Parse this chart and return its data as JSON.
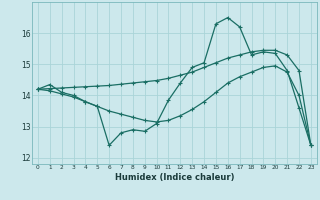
{
  "xlabel": "Humidex (Indice chaleur)",
  "bg_color": "#cce8ec",
  "grid_color": "#aad4d8",
  "line_color": "#1a6e64",
  "xlim": [
    -0.5,
    23.5
  ],
  "ylim": [
    11.8,
    17.0
  ],
  "yticks": [
    12,
    13,
    14,
    15,
    16
  ],
  "xticks": [
    0,
    1,
    2,
    3,
    4,
    5,
    6,
    7,
    8,
    9,
    10,
    11,
    12,
    13,
    14,
    15,
    16,
    17,
    18,
    19,
    20,
    21,
    22,
    23
  ],
  "line1_x": [
    0,
    1,
    2,
    3,
    4,
    5,
    6,
    7,
    8,
    9,
    10,
    11,
    12,
    13,
    14,
    15,
    16,
    17,
    18,
    19,
    20,
    21,
    22,
    23
  ],
  "line1_y": [
    14.2,
    14.35,
    14.1,
    14.0,
    13.8,
    13.65,
    12.4,
    12.8,
    12.9,
    12.85,
    13.1,
    13.85,
    14.4,
    14.9,
    15.05,
    16.3,
    16.5,
    16.2,
    15.3,
    15.4,
    15.35,
    14.8,
    13.6,
    12.4
  ],
  "line2_x": [
    0,
    1,
    2,
    3,
    4,
    5,
    6,
    7,
    8,
    9,
    10,
    11,
    12,
    13,
    14,
    15,
    16,
    17,
    18,
    19,
    20,
    21,
    22,
    23
  ],
  "line2_y": [
    14.2,
    14.22,
    14.24,
    14.26,
    14.28,
    14.3,
    14.32,
    14.36,
    14.4,
    14.44,
    14.48,
    14.55,
    14.65,
    14.75,
    14.9,
    15.05,
    15.2,
    15.3,
    15.4,
    15.45,
    15.45,
    15.3,
    14.8,
    12.4
  ],
  "line3_x": [
    0,
    1,
    2,
    3,
    4,
    5,
    6,
    7,
    8,
    9,
    10,
    11,
    12,
    13,
    14,
    15,
    16,
    17,
    18,
    19,
    20,
    21,
    22,
    23
  ],
  "line3_y": [
    14.2,
    14.15,
    14.05,
    13.95,
    13.8,
    13.65,
    13.5,
    13.4,
    13.3,
    13.2,
    13.15,
    13.2,
    13.35,
    13.55,
    13.8,
    14.1,
    14.4,
    14.6,
    14.75,
    14.9,
    14.95,
    14.75,
    14.0,
    12.4
  ]
}
